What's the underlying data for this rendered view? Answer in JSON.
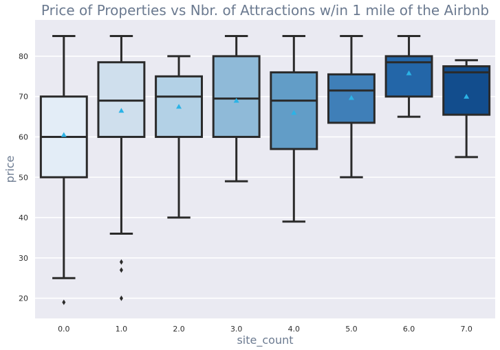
{
  "chart_data": {
    "type": "box",
    "title": "Price of Properties vs Nbr. of Attractions w/in 1 mile of the Airbnb",
    "xlabel": "site_count",
    "ylabel": "price",
    "categories": [
      "0.0",
      "1.0",
      "2.0",
      "3.0",
      "4.0",
      "5.0",
      "6.0",
      "7.0"
    ],
    "ylim": [
      15,
      89
    ],
    "yticks": [
      20,
      30,
      40,
      50,
      60,
      70,
      80
    ],
    "grid": true,
    "boxes": [
      {
        "category": "0.0",
        "whisker_low": 25,
        "q1": 50,
        "median": 60,
        "q3": 70,
        "whisker_high": 85,
        "mean": 60.5,
        "fliers": [
          19
        ],
        "color": "#e3edf7"
      },
      {
        "category": "1.0",
        "whisker_low": 36,
        "q1": 60,
        "median": 69,
        "q3": 78.5,
        "whisker_high": 85,
        "mean": 66.5,
        "fliers": [
          29,
          27,
          20
        ],
        "color": "#cfdfed"
      },
      {
        "category": "2.0",
        "whisker_low": 40,
        "q1": 60,
        "median": 70,
        "q3": 75,
        "whisker_high": 80,
        "mean": 67.5,
        "fliers": [],
        "color": "#b3d1e6"
      },
      {
        "category": "3.0",
        "whisker_low": 49,
        "q1": 60,
        "median": 69.5,
        "q3": 80,
        "whisker_high": 85,
        "mean": 69,
        "fliers": [],
        "color": "#8fbad8"
      },
      {
        "category": "4.0",
        "whisker_low": 39,
        "q1": 57,
        "median": 69,
        "q3": 76,
        "whisker_high": 85,
        "mean": 66,
        "fliers": [],
        "color": "#629dc7"
      },
      {
        "category": "5.0",
        "whisker_low": 50,
        "q1": 63.5,
        "median": 71.5,
        "q3": 75.5,
        "whisker_high": 85,
        "mean": 69.7,
        "fliers": [],
        "color": "#3f7fb8"
      },
      {
        "category": "6.0",
        "whisker_low": 65,
        "q1": 70,
        "median": 78.5,
        "q3": 80,
        "whisker_high": 85,
        "mean": 75.8,
        "fliers": [],
        "color": "#2366a8"
      },
      {
        "category": "7.0",
        "whisker_low": 55,
        "q1": 65.5,
        "median": 76,
        "q3": 77.5,
        "whisker_high": 79,
        "mean": 70,
        "fliers": [],
        "color": "#124d8d"
      }
    ],
    "colors": {
      "plot_background": "#eaeaf2",
      "grid": "#ffffff",
      "box_edge": "#2a2a2a",
      "mean_marker": "#2bb3e6",
      "flier": "#2a2a2a",
      "text": "#6b7a90"
    }
  }
}
